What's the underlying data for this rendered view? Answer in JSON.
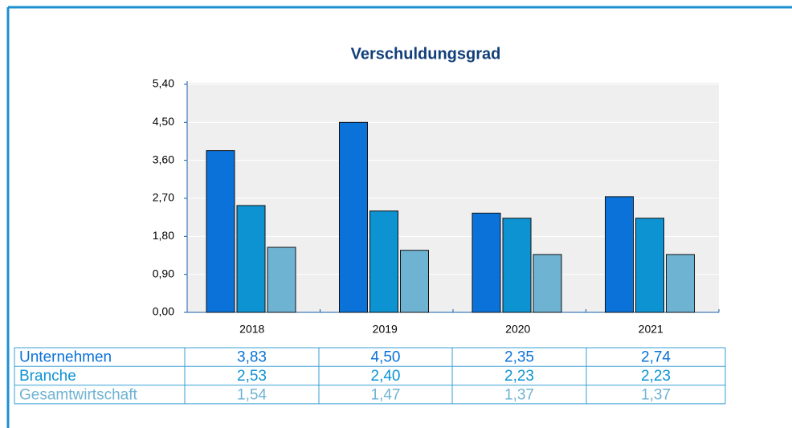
{
  "chart_data": {
    "type": "bar",
    "title": "Verschuldungsgrad",
    "categories": [
      "2018",
      "2019",
      "2020",
      "2021"
    ],
    "series": [
      {
        "name": "Unternehmen",
        "color": "#0a72d8",
        "values": [
          3.83,
          4.5,
          2.35,
          2.74
        ],
        "value_labels": [
          "3,83",
          "4,50",
          "2,35",
          "2,74"
        ]
      },
      {
        "name": "Branche",
        "color": "#0d93d2",
        "values": [
          2.53,
          2.4,
          2.23,
          2.23
        ],
        "value_labels": [
          "2,53",
          "2,40",
          "2,23",
          "2,23"
        ]
      },
      {
        "name": "Gesamtwirtschaft",
        "color": "#6fb3d3",
        "values": [
          1.54,
          1.47,
          1.37,
          1.37
        ],
        "value_labels": [
          "1,54",
          "1,47",
          "1,37",
          "1,37"
        ]
      }
    ],
    "ylim": [
      0,
      5.4
    ],
    "yticks": [
      {
        "value": 0,
        "label": "0,00"
      },
      {
        "value": 0.9,
        "label": "0,90"
      },
      {
        "value": 1.8,
        "label": "1,80"
      },
      {
        "value": 2.7,
        "label": "2,70"
      },
      {
        "value": 3.6,
        "label": "3,60"
      },
      {
        "value": 4.5,
        "label": "4,50"
      },
      {
        "value": 5.4,
        "label": "5,40"
      }
    ],
    "grid": true
  }
}
